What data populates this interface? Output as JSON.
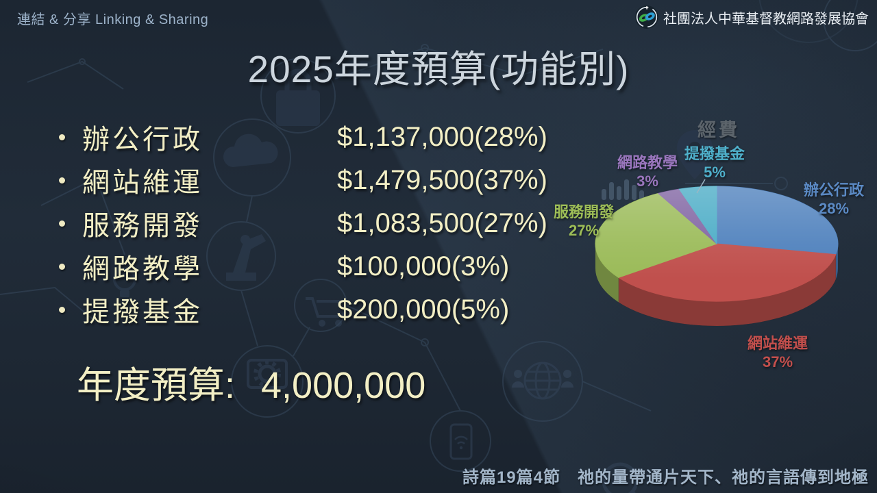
{
  "slide": {
    "motto": "連結 & 分享 Linking & Sharing",
    "org_name": "社團法人中華基督教網路發展協會",
    "title": "2025年度預算(功能別)",
    "budget_items": [
      {
        "label": "辦公行政",
        "amount": "$1,137,000(28%)"
      },
      {
        "label": "網站維運",
        "amount": "$1,479,500(37%)"
      },
      {
        "label": "服務開發",
        "amount": "$1,083,500(27%)"
      },
      {
        "label": "網路教學",
        "amount": "$100,000(3%)"
      },
      {
        "label": "提撥基金",
        "amount": "$200,000(5%)"
      }
    ],
    "total": {
      "label": "年度預算:",
      "value": "4,000,000"
    },
    "verse": "詩篇19篇4節　祂的量帶通片天下、祂的言語傳到地極"
  },
  "chart_data": {
    "type": "pie",
    "style": "3d",
    "title": "經費",
    "labels": [
      "辦公行政",
      "網站維運",
      "服務開發",
      "網路教學",
      "提撥基金"
    ],
    "values": [
      28,
      37,
      27,
      3,
      5
    ],
    "pct_labels": [
      "28%",
      "37%",
      "27%",
      "3%",
      "5%"
    ],
    "colors": [
      "#4F81BD",
      "#C0504D",
      "#9BBB59",
      "#8064A2",
      "#4BACC6"
    ],
    "label_colors": [
      "#5b8ac5",
      "#c34f4c",
      "#9dbd57",
      "#9a76bd",
      "#4fb0cb"
    ],
    "title_color": "#5c646b",
    "start_angle_deg": 0,
    "direction": "clockwise",
    "legend_position": "none"
  },
  "colors": {
    "background": "#1d2733",
    "list_text": "#f3efc5",
    "title_text": "#ccd5dd",
    "motto_text": "#9db3ca",
    "org_text": "#e9eef3",
    "verse_text": "#a3b6c9"
  }
}
